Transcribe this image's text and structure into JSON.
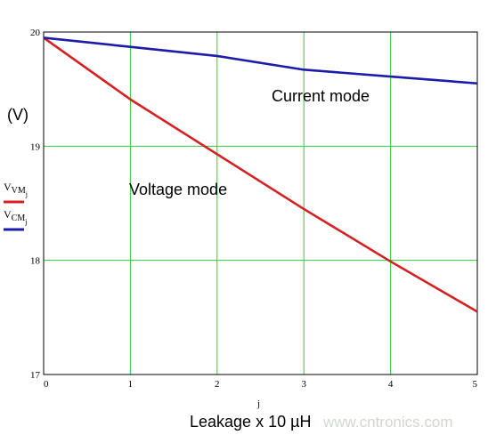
{
  "chart_data": {
    "type": "line",
    "x": [
      0,
      1,
      2,
      3,
      4,
      5
    ],
    "xlim": [
      0,
      5
    ],
    "ylim": [
      17,
      20
    ],
    "x_ticks": [
      "0",
      "1",
      "2",
      "3",
      "4",
      "5"
    ],
    "y_ticks": [
      "17",
      "18",
      "19",
      "20"
    ],
    "xlabel": "j",
    "ylabel": "(V)",
    "axis_title": "Leakage x 10 µH",
    "grid": true,
    "series": [
      {
        "name": "V_VM_j",
        "label": "Voltage mode",
        "color": "#d42020",
        "values": [
          19.95,
          19.41,
          18.93,
          18.45,
          17.99,
          17.55
        ]
      },
      {
        "name": "V_CM_j",
        "label": "Current mode",
        "color": "#1c1ca8",
        "values": [
          19.95,
          19.87,
          19.79,
          19.67,
          19.61,
          19.55
        ]
      }
    ],
    "legend": [
      {
        "main": "V",
        "sub": "VM",
        "subsub": "j",
        "color": "#d42020"
      },
      {
        "main": "V",
        "sub": "CM",
        "subsub": "j",
        "color": "#1c1ca8"
      }
    ],
    "grid_color": "#2ecc40",
    "watermark": "www.cntronics.com"
  }
}
